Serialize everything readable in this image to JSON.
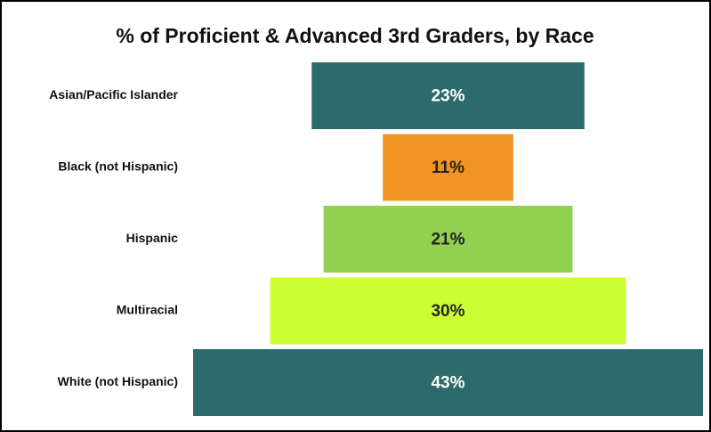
{
  "chart_data": {
    "type": "bar",
    "orientation": "horizontal",
    "align": "center",
    "title": "% of Proficient & Advanced 3rd Graders, by Race",
    "categories": [
      "Asian/Pacific Islander",
      "Black (not Hispanic)",
      "Hispanic",
      "Multiracial",
      "White (not Hispanic)"
    ],
    "values": [
      23,
      11,
      21,
      30,
      43
    ],
    "value_labels": [
      "23%",
      "11%",
      "21%",
      "30%",
      "43%"
    ],
    "colors": [
      "#2b6b6b",
      "#f29423",
      "#92d050",
      "#ccff33",
      "#2b6b6b"
    ]
  }
}
